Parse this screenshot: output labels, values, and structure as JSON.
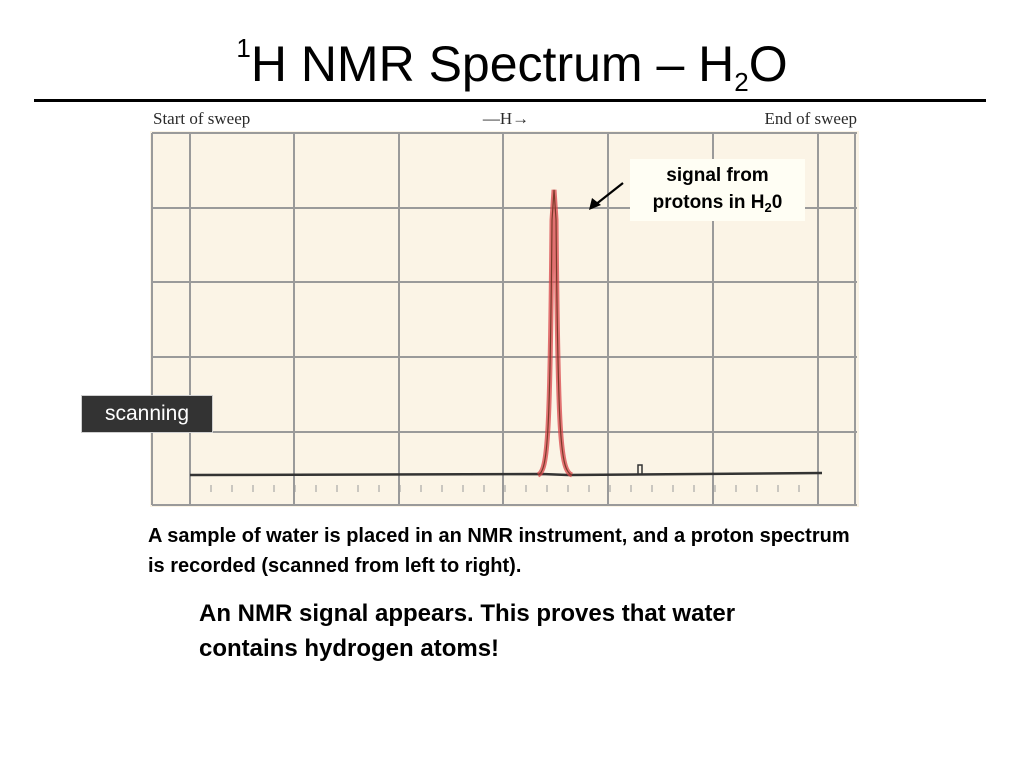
{
  "title": {
    "superscript": "1",
    "main": "H NMR Spectrum – H",
    "subscript": "2",
    "suffix": "O"
  },
  "chart_data": {
    "type": "line",
    "title": "",
    "xlabel": "—H→",
    "ylabel": "",
    "sweep_start_label": "Start of sweep",
    "sweep_end_label": "End of sweep",
    "grid": true,
    "series": [
      {
        "peak_position_fraction": 0.576,
        "peak_height_fraction": 0.82
      }
    ],
    "annotations": [
      {
        "text_line1": "signal from",
        "text_line2_prefix": "protons in H",
        "text_line2_sub": "2",
        "text_line2_suffix": "0"
      }
    ]
  },
  "colors": {
    "plot_background": "#fbf4e6",
    "grid": "#9a9a9a",
    "baseline": "#333333",
    "peak": "#d9464a",
    "scanning_badge": "#333333"
  },
  "scanning_badge": "scanning",
  "caption": "A sample of water is placed in an NMR instrument, and a proton spectrum is recorded (scanned from left to right).",
  "conclusion": "An NMR signal appears.  This proves that water contains hydrogen atoms!"
}
